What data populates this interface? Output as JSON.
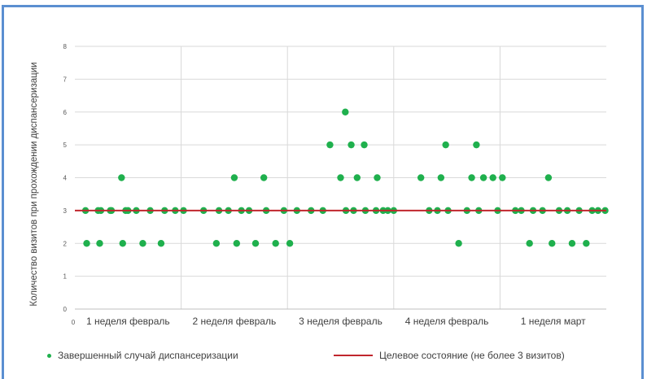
{
  "chart_data": {
    "type": "scatter",
    "title": "",
    "xlabel": "",
    "ylabel": "Количество визитов при прохождении диспансеризации",
    "ylim": [
      0,
      8
    ],
    "yticks": [
      "0",
      "1",
      "2",
      "3",
      "4",
      "5",
      "6",
      "7",
      "8"
    ],
    "x_origin_label": "0",
    "grid": true,
    "legend_position": "bottom",
    "categories": [
      "1 неделя февраль",
      "2 неделя февраль",
      "3 неделя февраль",
      "4 неделя февраль",
      "1 неделя март"
    ],
    "series": [
      {
        "name": "Завершенный случай диспансеризации",
        "kind": "scatter",
        "color": "#1fb04d",
        "points": [
          {
            "x": 0.9,
            "y": 3
          },
          {
            "x": 1.0,
            "y": 2
          },
          {
            "x": 1.97,
            "y": 3
          },
          {
            "x": 2.1,
            "y": 2
          },
          {
            "x": 2.2,
            "y": 3
          },
          {
            "x": 3.0,
            "y": 3
          },
          {
            "x": 3.1,
            "y": 3
          },
          {
            "x": 3.95,
            "y": 4
          },
          {
            "x": 4.05,
            "y": 2
          },
          {
            "x": 4.3,
            "y": 3
          },
          {
            "x": 4.5,
            "y": 3
          },
          {
            "x": 5.2,
            "y": 3
          },
          {
            "x": 5.75,
            "y": 2
          },
          {
            "x": 6.38,
            "y": 3
          },
          {
            "x": 7.3,
            "y": 2
          },
          {
            "x": 7.6,
            "y": 3
          },
          {
            "x": 8.5,
            "y": 3
          },
          {
            "x": 9.2,
            "y": 3
          },
          {
            "x": 10.9,
            "y": 3
          },
          {
            "x": 11.98,
            "y": 2
          },
          {
            "x": 12.2,
            "y": 3
          },
          {
            "x": 13.0,
            "y": 3
          },
          {
            "x": 13.5,
            "y": 4
          },
          {
            "x": 13.7,
            "y": 2
          },
          {
            "x": 14.1,
            "y": 3
          },
          {
            "x": 14.75,
            "y": 3
          },
          {
            "x": 15.3,
            "y": 2
          },
          {
            "x": 16.0,
            "y": 4
          },
          {
            "x": 16.2,
            "y": 3
          },
          {
            "x": 17.0,
            "y": 2
          },
          {
            "x": 17.7,
            "y": 3
          },
          {
            "x": 18.2,
            "y": 2
          },
          {
            "x": 18.8,
            "y": 3
          },
          {
            "x": 20.0,
            "y": 3
          },
          {
            "x": 21.0,
            "y": 3
          },
          {
            "x": 21.6,
            "y": 5
          },
          {
            "x": 22.5,
            "y": 4
          },
          {
            "x": 22.9,
            "y": 6
          },
          {
            "x": 22.95,
            "y": 3
          },
          {
            "x": 23.4,
            "y": 5
          },
          {
            "x": 23.6,
            "y": 3
          },
          {
            "x": 23.9,
            "y": 4
          },
          {
            "x": 24.5,
            "y": 5
          },
          {
            "x": 24.6,
            "y": 3
          },
          {
            "x": 25.5,
            "y": 3
          },
          {
            "x": 25.6,
            "y": 4
          },
          {
            "x": 26.1,
            "y": 3
          },
          {
            "x": 26.5,
            "y": 3
          },
          {
            "x": 27.0,
            "y": 3
          },
          {
            "x": 29.3,
            "y": 4
          },
          {
            "x": 30.0,
            "y": 3
          },
          {
            "x": 30.7,
            "y": 3
          },
          {
            "x": 31.0,
            "y": 4
          },
          {
            "x": 31.4,
            "y": 5
          },
          {
            "x": 31.6,
            "y": 3
          },
          {
            "x": 32.5,
            "y": 2
          },
          {
            "x": 33.2,
            "y": 3
          },
          {
            "x": 33.6,
            "y": 4
          },
          {
            "x": 34.0,
            "y": 5
          },
          {
            "x": 34.2,
            "y": 3
          },
          {
            "x": 34.6,
            "y": 4
          },
          {
            "x": 35.4,
            "y": 4
          },
          {
            "x": 35.8,
            "y": 3
          },
          {
            "x": 36.2,
            "y": 4
          },
          {
            "x": 37.3,
            "y": 3
          },
          {
            "x": 37.8,
            "y": 3
          },
          {
            "x": 38.5,
            "y": 2
          },
          {
            "x": 38.8,
            "y": 3
          },
          {
            "x": 39.6,
            "y": 3
          },
          {
            "x": 40.1,
            "y": 4
          },
          {
            "x": 40.4,
            "y": 2
          },
          {
            "x": 41.0,
            "y": 3
          },
          {
            "x": 41.7,
            "y": 3
          },
          {
            "x": 42.1,
            "y": 2
          },
          {
            "x": 42.7,
            "y": 3
          },
          {
            "x": 43.3,
            "y": 2
          },
          {
            "x": 43.8,
            "y": 3
          },
          {
            "x": 44.3,
            "y": 3
          },
          {
            "x": 44.9,
            "y": 3
          }
        ]
      },
      {
        "name": "Целевое состояние (не более 3 визитов)",
        "kind": "line",
        "color": "#c0262d",
        "value": 3
      }
    ]
  }
}
